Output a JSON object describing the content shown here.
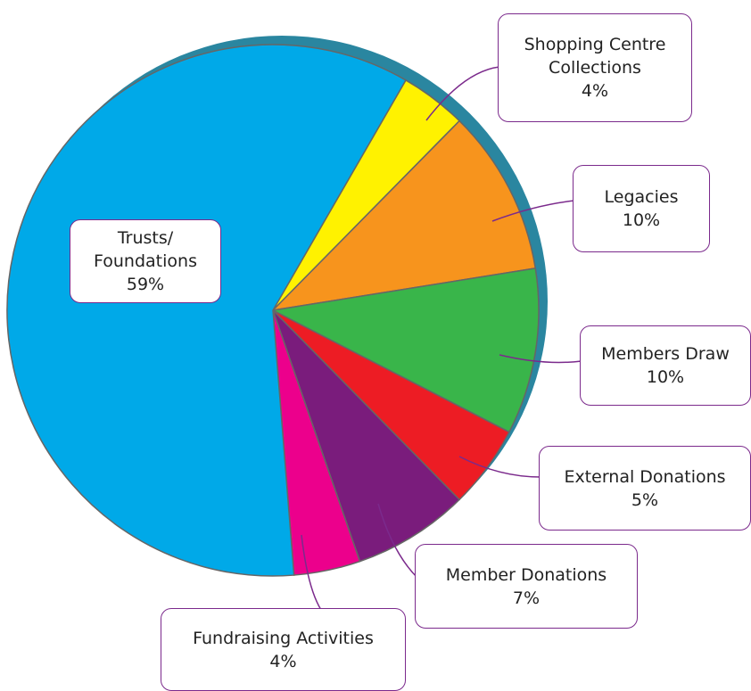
{
  "chart_data": {
    "type": "pie",
    "categories": [
      "Shopping Centre Collections",
      "Legacies",
      "Members Draw",
      "External Donations",
      "Member Donations",
      "Fundraising Activities",
      "Trusts/ Foundations"
    ],
    "values": [
      4,
      10,
      10,
      5,
      7,
      4,
      59
    ],
    "value_labels": [
      "4%",
      "10%",
      "10%",
      "5%",
      "7%",
      "4%",
      "59%"
    ],
    "colors": [
      "#fff200",
      "#f7941d",
      "#39b54a",
      "#ed1c24",
      "#7a1c7c",
      "#ec008c",
      "#00a9e8"
    ]
  }
}
